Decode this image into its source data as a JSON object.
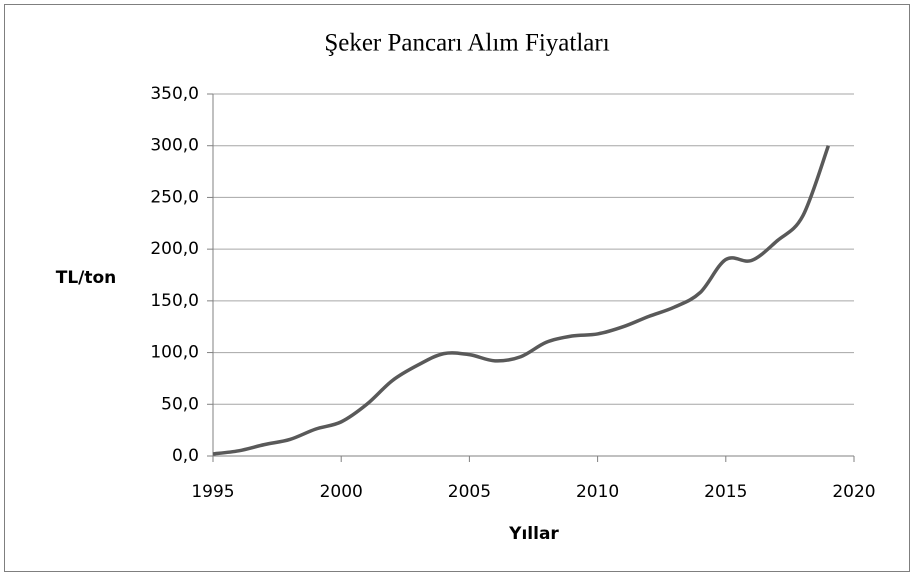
{
  "chart_data": {
    "type": "line",
    "title": "Şeker Pancarı Alım Fiyatları",
    "x_label": "Yıllar",
    "y_label": "TL/ton",
    "x": [
      1995,
      1996,
      1997,
      1998,
      1999,
      2000,
      2001,
      2002,
      2003,
      2004,
      2005,
      2006,
      2007,
      2008,
      2009,
      2010,
      2011,
      2012,
      2013,
      2014,
      2015,
      2016,
      2017,
      2018,
      2019
    ],
    "values": [
      2,
      5,
      11,
      16,
      26,
      33,
      50,
      73,
      88,
      99,
      98,
      92,
      96,
      110,
      116,
      118,
      125,
      135,
      144,
      158,
      190,
      189,
      208,
      232,
      300
    ],
    "color": "#595959",
    "xlim": [
      1995,
      2020
    ],
    "xticks": [
      1995,
      2000,
      2005,
      2010,
      2015,
      2020
    ],
    "ylim": [
      0,
      350
    ],
    "yticks": [
      {
        "value": 0,
        "label": "0,0"
      },
      {
        "value": 50,
        "label": "50,0"
      },
      {
        "value": 100,
        "label": "100,0"
      },
      {
        "value": 150,
        "label": "150,0"
      },
      {
        "value": 200,
        "label": "200,0"
      },
      {
        "value": 250,
        "label": "250,0"
      },
      {
        "value": 300,
        "label": "300,0"
      },
      {
        "value": 350,
        "label": "350,0"
      }
    ],
    "grid": true
  }
}
